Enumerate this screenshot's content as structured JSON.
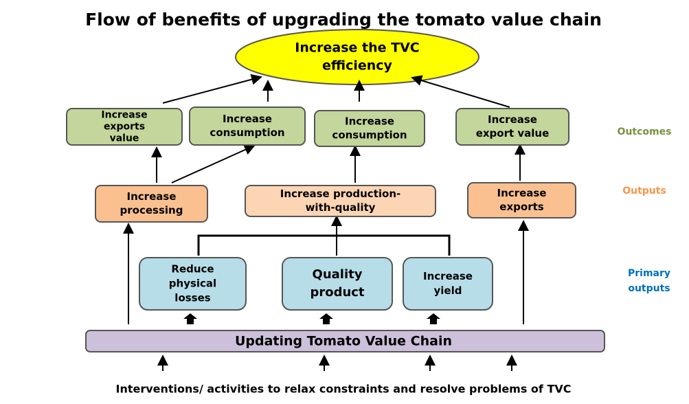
{
  "title": "Flow of benefits of upgrading the tomato  value chain",
  "goal": [
    "Increase the TVC",
    "efficiency"
  ],
  "outcomes": [
    [
      "Increase",
      "exports",
      "value"
    ],
    [
      "Increase",
      "consumption"
    ],
    [
      "Increase",
      "consumption"
    ],
    [
      "Increase",
      "export value"
    ]
  ],
  "outputs": [
    [
      "Increase",
      "processing"
    ],
    [
      "Increase production-",
      "with-quality"
    ],
    [
      "Increase",
      "exports"
    ]
  ],
  "primary_outputs": [
    [
      "Reduce",
      "physical",
      "losses"
    ],
    [
      "Quality",
      "product"
    ],
    [
      "Increase",
      "yield"
    ]
  ],
  "base": "Updating Tomato Value Chain",
  "footer": "Interventions/ activities to relax constraints and resolve problems of TVC",
  "levels": {
    "outcomes": "Outcomes",
    "outputs": "Outputs",
    "primary_outputs": [
      "Primary",
      "outputs"
    ]
  }
}
